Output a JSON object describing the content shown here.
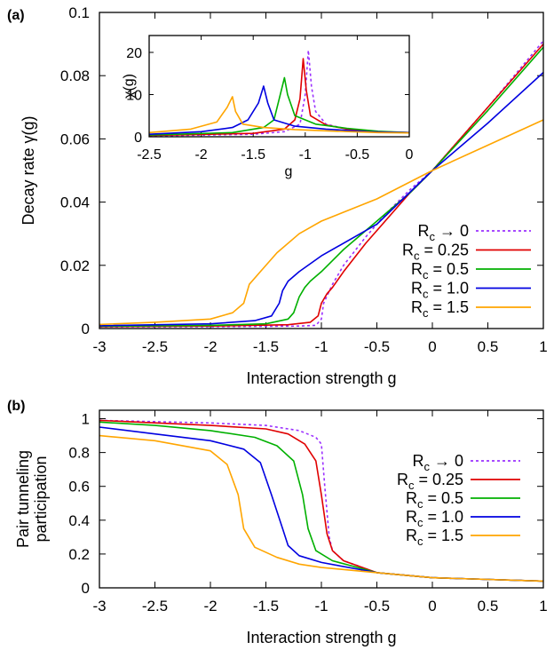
{
  "chart_data": [
    {
      "panel_label": "(a)",
      "type": "line",
      "xlabel": "Interaction strength g",
      "ylabel": "Decay rate γ(g)",
      "xlim": [
        -3,
        1
      ],
      "ylim": [
        0,
        0.1
      ],
      "xticks": [
        "-3",
        "-2.5",
        "-2",
        "-1.5",
        "-1",
        "-0.5",
        "0",
        "0.5",
        "1"
      ],
      "yticks": [
        "0",
        "0.02",
        "0.04",
        "0.06",
        "0.08",
        "0.1"
      ],
      "legend_position": "lower-right",
      "series": [
        {
          "name_main": "R",
          "name_sub": "c",
          "name_rest": " → 0",
          "color": "#9b30ff",
          "dash": true,
          "points": [
            [
              -3,
              0.0005
            ],
            [
              -2,
              0.0006
            ],
            [
              -1.2,
              0.0008
            ],
            [
              -1.05,
              0.001
            ],
            [
              -1.0,
              0.003
            ],
            [
              -0.98,
              0.008
            ],
            [
              -0.9,
              0.014
            ],
            [
              -0.8,
              0.02
            ],
            [
              -0.6,
              0.029
            ],
            [
              -0.4,
              0.037
            ],
            [
              -0.2,
              0.044
            ],
            [
              0,
              0.05
            ],
            [
              0.2,
              0.058
            ],
            [
              0.5,
              0.07
            ],
            [
              1,
              0.091
            ]
          ]
        },
        {
          "name_main": "R",
          "name_sub": "c",
          "name_rest": " = 0.25",
          "color": "#e00000",
          "points": [
            [
              -3,
              0.0006
            ],
            [
              -2,
              0.0008
            ],
            [
              -1.3,
              0.0012
            ],
            [
              -1.1,
              0.002
            ],
            [
              -1.03,
              0.004
            ],
            [
              -1.0,
              0.008
            ],
            [
              -0.95,
              0.011
            ],
            [
              -0.9,
              0.013
            ],
            [
              -0.8,
              0.018
            ],
            [
              -0.6,
              0.027
            ],
            [
              -0.4,
              0.035
            ],
            [
              -0.2,
              0.043
            ],
            [
              0,
              0.05
            ],
            [
              0.2,
              0.058
            ],
            [
              0.5,
              0.07
            ],
            [
              1,
              0.09
            ]
          ]
        },
        {
          "name_main": "R",
          "name_sub": "c",
          "name_rest": " = 0.5",
          "color": "#00b000",
          "points": [
            [
              -3,
              0.0007
            ],
            [
              -2,
              0.001
            ],
            [
              -1.5,
              0.0015
            ],
            [
              -1.3,
              0.003
            ],
            [
              -1.25,
              0.005
            ],
            [
              -1.2,
              0.01
            ],
            [
              -1.15,
              0.013
            ],
            [
              -1.1,
              0.015
            ],
            [
              -1.0,
              0.018
            ],
            [
              -0.8,
              0.025
            ],
            [
              -0.5,
              0.034
            ],
            [
              -0.2,
              0.043
            ],
            [
              0,
              0.05
            ],
            [
              0.5,
              0.069
            ],
            [
              1,
              0.089
            ]
          ]
        },
        {
          "name_main": "R",
          "name_sub": "c",
          "name_rest": " = 1.0",
          "color": "#0000e0",
          "points": [
            [
              -3,
              0.0009
            ],
            [
              -2,
              0.0015
            ],
            [
              -1.6,
              0.0025
            ],
            [
              -1.45,
              0.004
            ],
            [
              -1.38,
              0.008
            ],
            [
              -1.35,
              0.012
            ],
            [
              -1.3,
              0.015
            ],
            [
              -1.2,
              0.018
            ],
            [
              -1.0,
              0.023
            ],
            [
              -0.5,
              0.033
            ],
            [
              0,
              0.05
            ],
            [
              0.5,
              0.065
            ],
            [
              1,
              0.081
            ]
          ]
        },
        {
          "name_main": "R",
          "name_sub": "c",
          "name_rest": " = 1.5",
          "color": "#ffa500",
          "points": [
            [
              -3,
              0.0013
            ],
            [
              -2.5,
              0.002
            ],
            [
              -2,
              0.003
            ],
            [
              -1.8,
              0.005
            ],
            [
              -1.7,
              0.008
            ],
            [
              -1.65,
              0.014
            ],
            [
              -1.55,
              0.018
            ],
            [
              -1.4,
              0.024
            ],
            [
              -1.2,
              0.03
            ],
            [
              -1,
              0.034
            ],
            [
              -0.5,
              0.041
            ],
            [
              0,
              0.05
            ],
            [
              0.5,
              0.058
            ],
            [
              1,
              0.066
            ]
          ]
        }
      ],
      "inset": {
        "type": "line",
        "xlabel": "g",
        "ylabel": "χ(g)",
        "xlim": [
          -2.5,
          0
        ],
        "ylim": [
          0,
          24
        ],
        "xticks": [
          "-2.5",
          "-2",
          "-1.5",
          "-1",
          "-0.5",
          "0"
        ],
        "yticks": [
          "0",
          "10",
          "20"
        ],
        "series": [
          {
            "color": "#9b30ff",
            "dash": true,
            "points": [
              [
                -2.5,
                0.2
              ],
              [
                -1.5,
                0.6
              ],
              [
                -1.2,
                1.2
              ],
              [
                -1.05,
                3
              ],
              [
                -1.0,
                10
              ],
              [
                -0.97,
                20.5
              ],
              [
                -0.94,
                12
              ],
              [
                -0.9,
                6
              ],
              [
                -0.8,
                3
              ],
              [
                -0.6,
                1.8
              ],
              [
                -0.3,
                1.2
              ],
              [
                0,
                0.9
              ]
            ]
          },
          {
            "color": "#e00000",
            "points": [
              [
                -2.5,
                0.3
              ],
              [
                -1.5,
                0.8
              ],
              [
                -1.2,
                1.8
              ],
              [
                -1.1,
                4
              ],
              [
                -1.05,
                9
              ],
              [
                -1.02,
                18.5
              ],
              [
                -0.99,
                11
              ],
              [
                -0.95,
                5
              ],
              [
                -0.8,
                2.8
              ],
              [
                -0.6,
                1.8
              ],
              [
                -0.3,
                1.2
              ],
              [
                0,
                1.0
              ]
            ]
          },
          {
            "color": "#00b000",
            "points": [
              [
                -2.5,
                0.4
              ],
              [
                -1.7,
                1.0
              ],
              [
                -1.4,
                2.2
              ],
              [
                -1.3,
                4
              ],
              [
                -1.25,
                9
              ],
              [
                -1.2,
                14
              ],
              [
                -1.17,
                10
              ],
              [
                -1.1,
                5
              ],
              [
                -0.9,
                3
              ],
              [
                -0.6,
                2
              ],
              [
                -0.3,
                1.3
              ],
              [
                0,
                1.0
              ]
            ]
          },
          {
            "color": "#0000e0",
            "points": [
              [
                -2.5,
                0.6
              ],
              [
                -2.0,
                1.2
              ],
              [
                -1.7,
                2.2
              ],
              [
                -1.55,
                4
              ],
              [
                -1.45,
                8
              ],
              [
                -1.4,
                12
              ],
              [
                -1.36,
                8
              ],
              [
                -1.3,
                4
              ],
              [
                -1.1,
                2.5
              ],
              [
                -0.8,
                1.8
              ],
              [
                -0.4,
                1.2
              ],
              [
                0,
                1.0
              ]
            ]
          },
          {
            "color": "#ffa500",
            "points": [
              [
                -2.5,
                1.0
              ],
              [
                -2.1,
                1.8
              ],
              [
                -1.85,
                3.5
              ],
              [
                -1.75,
                7
              ],
              [
                -1.7,
                9.5
              ],
              [
                -1.67,
                6
              ],
              [
                -1.6,
                3
              ],
              [
                -1.4,
                2.2
              ],
              [
                -1.1,
                1.7
              ],
              [
                -0.7,
                1.3
              ],
              [
                -0.3,
                1.0
              ],
              [
                0,
                0.9
              ]
            ]
          }
        ]
      }
    },
    {
      "panel_label": "(b)",
      "type": "line",
      "xlabel": "Interaction strength g",
      "ylabel_lines": [
        "Pair tunneling",
        "participation"
      ],
      "xlim": [
        -3,
        1
      ],
      "ylim": [
        0,
        1.05
      ],
      "xticks": [
        "-3",
        "-2.5",
        "-2",
        "-1.5",
        "-1",
        "-0.5",
        "0",
        "0.5",
        "1"
      ],
      "yticks": [
        "0",
        "0.2",
        "0.4",
        "0.6",
        "0.8",
        "1"
      ],
      "legend_position": "right",
      "series": [
        {
          "name_main": "R",
          "name_sub": "c",
          "name_rest": " → 0",
          "color": "#9b30ff",
          "dash": true,
          "points": [
            [
              -3,
              0.99
            ],
            [
              -2,
              0.975
            ],
            [
              -1.5,
              0.96
            ],
            [
              -1.2,
              0.93
            ],
            [
              -1.05,
              0.89
            ],
            [
              -1.0,
              0.85
            ],
            [
              -0.97,
              0.6
            ],
            [
              -0.93,
              0.3
            ],
            [
              -0.9,
              0.22
            ],
            [
              -0.8,
              0.16
            ],
            [
              -0.5,
              0.09
            ],
            [
              0,
              0.06
            ],
            [
              1,
              0.04
            ]
          ]
        },
        {
          "name_main": "R",
          "name_sub": "c",
          "name_rest": " = 0.25",
          "color": "#e00000",
          "points": [
            [
              -3,
              0.99
            ],
            [
              -2,
              0.96
            ],
            [
              -1.5,
              0.94
            ],
            [
              -1.3,
              0.91
            ],
            [
              -1.15,
              0.85
            ],
            [
              -1.05,
              0.75
            ],
            [
              -1.0,
              0.55
            ],
            [
              -0.95,
              0.32
            ],
            [
              -0.9,
              0.22
            ],
            [
              -0.8,
              0.16
            ],
            [
              -0.5,
              0.09
            ],
            [
              0,
              0.06
            ],
            [
              1,
              0.04
            ]
          ]
        },
        {
          "name_main": "R",
          "name_sub": "c",
          "name_rest": " = 0.5",
          "color": "#00b000",
          "points": [
            [
              -3,
              0.98
            ],
            [
              -2.5,
              0.96
            ],
            [
              -2,
              0.93
            ],
            [
              -1.6,
              0.89
            ],
            [
              -1.4,
              0.84
            ],
            [
              -1.25,
              0.75
            ],
            [
              -1.17,
              0.55
            ],
            [
              -1.12,
              0.35
            ],
            [
              -1.05,
              0.22
            ],
            [
              -0.9,
              0.16
            ],
            [
              -0.5,
              0.09
            ],
            [
              0,
              0.06
            ],
            [
              1,
              0.04
            ]
          ]
        },
        {
          "name_main": "R",
          "name_sub": "c",
          "name_rest": " = 1.0",
          "color": "#0000e0",
          "points": [
            [
              -3,
              0.95
            ],
            [
              -2.5,
              0.91
            ],
            [
              -2,
              0.87
            ],
            [
              -1.7,
              0.82
            ],
            [
              -1.55,
              0.74
            ],
            [
              -1.45,
              0.55
            ],
            [
              -1.35,
              0.35
            ],
            [
              -1.3,
              0.25
            ],
            [
              -1.2,
              0.19
            ],
            [
              -1.0,
              0.15
            ],
            [
              -0.5,
              0.09
            ],
            [
              0,
              0.06
            ],
            [
              1,
              0.04
            ]
          ]
        },
        {
          "name_main": "R",
          "name_sub": "c",
          "name_rest": " = 1.5",
          "color": "#ffa500",
          "points": [
            [
              -3,
              0.9
            ],
            [
              -2.5,
              0.87
            ],
            [
              -2,
              0.81
            ],
            [
              -1.85,
              0.73
            ],
            [
              -1.75,
              0.55
            ],
            [
              -1.7,
              0.35
            ],
            [
              -1.6,
              0.24
            ],
            [
              -1.4,
              0.18
            ],
            [
              -1.2,
              0.14
            ],
            [
              -1.0,
              0.12
            ],
            [
              -0.5,
              0.09
            ],
            [
              0,
              0.06
            ],
            [
              1,
              0.04
            ]
          ]
        }
      ]
    }
  ]
}
